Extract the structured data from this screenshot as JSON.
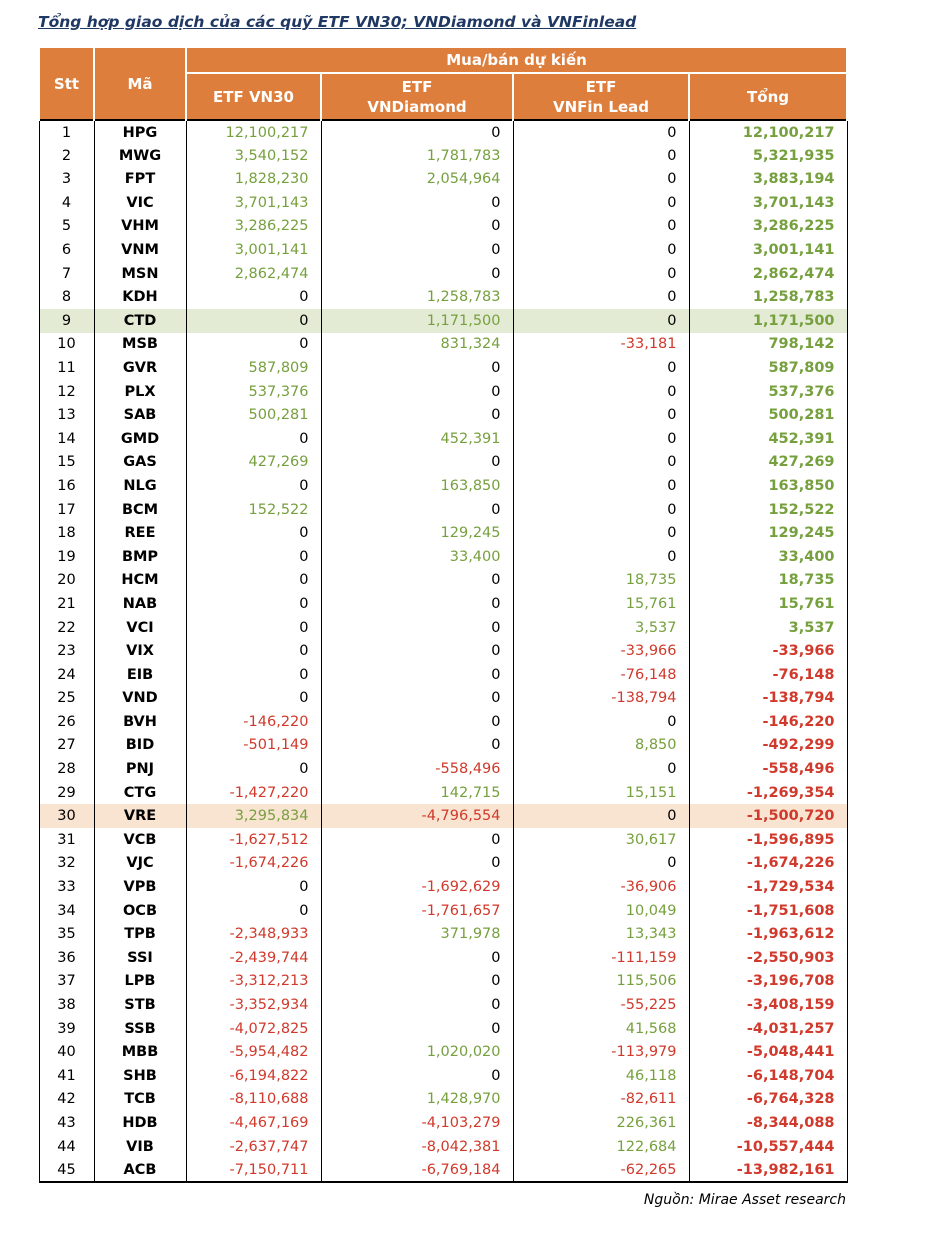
{
  "page_title": "Tổng hợp giao dịch của các quỹ ETF VN30; VNDiamond và VNFinlead",
  "source_note": "Nguồn: Mirae Asset research",
  "colors": {
    "header_bg": "#DD7E3C",
    "positive": "#76A03E",
    "negative": "#D0392B",
    "zero": "#000000",
    "highlight_green": "#E4EBD5",
    "highlight_orange": "#F8E4D0",
    "title_color": "#203864"
  },
  "table": {
    "group_header": "Mua/bán dự kiến",
    "columns": [
      "Stt",
      "Mã",
      "ETF VN30",
      "ETF\nVNDiamond",
      "ETF\nVNFin Lead",
      "Tổng"
    ],
    "highlights": {
      "9": "green",
      "30": "orange"
    },
    "rows": [
      [
        "1",
        "HPG",
        "12,100,217",
        "0",
        "0",
        "12,100,217"
      ],
      [
        "2",
        "MWG",
        "3,540,152",
        "1,781,783",
        "0",
        "5,321,935"
      ],
      [
        "3",
        "FPT",
        "1,828,230",
        "2,054,964",
        "0",
        "3,883,194"
      ],
      [
        "4",
        "VIC",
        "3,701,143",
        "0",
        "0",
        "3,701,143"
      ],
      [
        "5",
        "VHM",
        "3,286,225",
        "0",
        "0",
        "3,286,225"
      ],
      [
        "6",
        "VNM",
        "3,001,141",
        "0",
        "0",
        "3,001,141"
      ],
      [
        "7",
        "MSN",
        "2,862,474",
        "0",
        "0",
        "2,862,474"
      ],
      [
        "8",
        "KDH",
        "0",
        "1,258,783",
        "0",
        "1,258,783"
      ],
      [
        "9",
        "CTD",
        "0",
        "1,171,500",
        "0",
        "1,171,500"
      ],
      [
        "10",
        "MSB",
        "0",
        "831,324",
        "-33,181",
        "798,142"
      ],
      [
        "11",
        "GVR",
        "587,809",
        "0",
        "0",
        "587,809"
      ],
      [
        "12",
        "PLX",
        "537,376",
        "0",
        "0",
        "537,376"
      ],
      [
        "13",
        "SAB",
        "500,281",
        "0",
        "0",
        "500,281"
      ],
      [
        "14",
        "GMD",
        "0",
        "452,391",
        "0",
        "452,391"
      ],
      [
        "15",
        "GAS",
        "427,269",
        "0",
        "0",
        "427,269"
      ],
      [
        "16",
        "NLG",
        "0",
        "163,850",
        "0",
        "163,850"
      ],
      [
        "17",
        "BCM",
        "152,522",
        "0",
        "0",
        "152,522"
      ],
      [
        "18",
        "REE",
        "0",
        "129,245",
        "0",
        "129,245"
      ],
      [
        "19",
        "BMP",
        "0",
        "33,400",
        "0",
        "33,400"
      ],
      [
        "20",
        "HCM",
        "0",
        "0",
        "18,735",
        "18,735"
      ],
      [
        "21",
        "NAB",
        "0",
        "0",
        "15,761",
        "15,761"
      ],
      [
        "22",
        "VCI",
        "0",
        "0",
        "3,537",
        "3,537"
      ],
      [
        "23",
        "VIX",
        "0",
        "0",
        "-33,966",
        "-33,966"
      ],
      [
        "24",
        "EIB",
        "0",
        "0",
        "-76,148",
        "-76,148"
      ],
      [
        "25",
        "VND",
        "0",
        "0",
        "-138,794",
        "-138,794"
      ],
      [
        "26",
        "BVH",
        "-146,220",
        "0",
        "0",
        "-146,220"
      ],
      [
        "27",
        "BID",
        "-501,149",
        "0",
        "8,850",
        "-492,299"
      ],
      [
        "28",
        "PNJ",
        "0",
        "-558,496",
        "0",
        "-558,496"
      ],
      [
        "29",
        "CTG",
        "-1,427,220",
        "142,715",
        "15,151",
        "-1,269,354"
      ],
      [
        "30",
        "VRE",
        "3,295,834",
        "-4,796,554",
        "0",
        "-1,500,720"
      ],
      [
        "31",
        "VCB",
        "-1,627,512",
        "0",
        "30,617",
        "-1,596,895"
      ],
      [
        "32",
        "VJC",
        "-1,674,226",
        "0",
        "0",
        "-1,674,226"
      ],
      [
        "33",
        "VPB",
        "0",
        "-1,692,629",
        "-36,906",
        "-1,729,534"
      ],
      [
        "34",
        "OCB",
        "0",
        "-1,761,657",
        "10,049",
        "-1,751,608"
      ],
      [
        "35",
        "TPB",
        "-2,348,933",
        "371,978",
        "13,343",
        "-1,963,612"
      ],
      [
        "36",
        "SSI",
        "-2,439,744",
        "0",
        "-111,159",
        "-2,550,903"
      ],
      [
        "37",
        "LPB",
        "-3,312,213",
        "0",
        "115,506",
        "-3,196,708"
      ],
      [
        "38",
        "STB",
        "-3,352,934",
        "0",
        "-55,225",
        "-3,408,159"
      ],
      [
        "39",
        "SSB",
        "-4,072,825",
        "0",
        "41,568",
        "-4,031,257"
      ],
      [
        "40",
        "MBB",
        "-5,954,482",
        "1,020,020",
        "-113,979",
        "-5,048,441"
      ],
      [
        "41",
        "SHB",
        "-6,194,822",
        "0",
        "46,118",
        "-6,148,704"
      ],
      [
        "42",
        "TCB",
        "-8,110,688",
        "1,428,970",
        "-82,611",
        "-6,764,328"
      ],
      [
        "43",
        "HDB",
        "-4,467,169",
        "-4,103,279",
        "226,361",
        "-8,344,088"
      ],
      [
        "44",
        "VIB",
        "-2,637,747",
        "-8,042,381",
        "122,684",
        "-10,557,444"
      ],
      [
        "45",
        "ACB",
        "-7,150,711",
        "-6,769,184",
        "-62,265",
        "-13,982,161"
      ]
    ]
  }
}
